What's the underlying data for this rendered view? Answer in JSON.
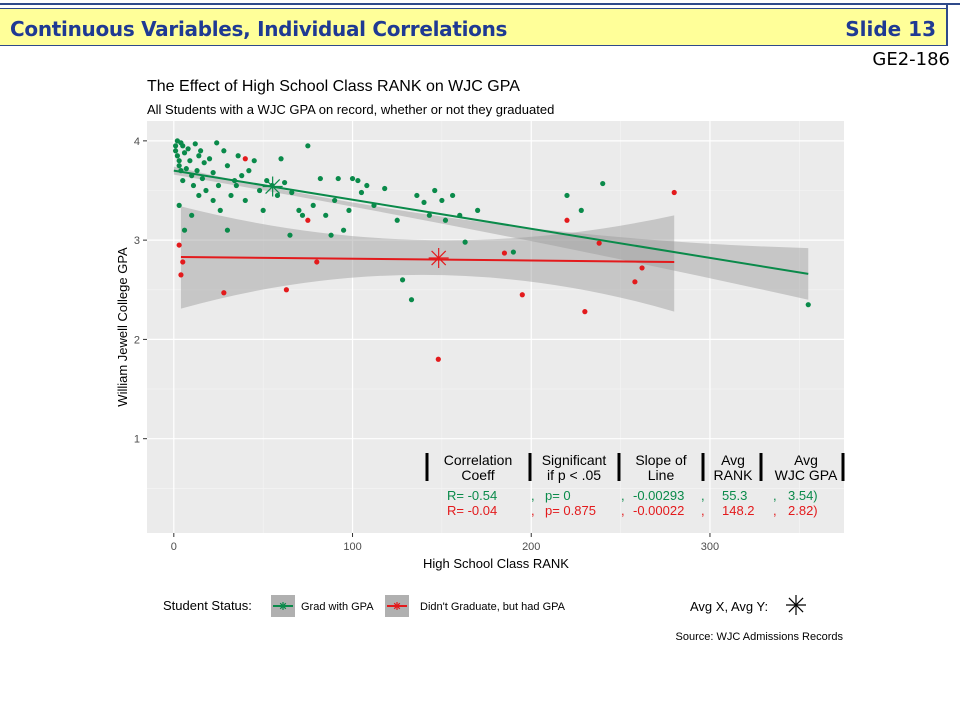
{
  "header": {
    "title": "Continuous Variables, Individual Correlations",
    "slide": "Slide 13",
    "code": "GE2-186"
  },
  "chart_data": {
    "type": "scatter",
    "title": "The Effect of High School Class RANK on WJC GPA",
    "subtitle": "All Students with a WJC GPA on record, whether or not they graduated",
    "xlabel": "High School Class RANK",
    "ylabel": "William Jewell College GPA",
    "xlim": [
      -15,
      375
    ],
    "ylim": [
      0.05,
      4.2
    ],
    "xticks": [
      0,
      100,
      200,
      300
    ],
    "yticks": [
      1,
      2,
      3,
      4
    ],
    "grid": true,
    "series": [
      {
        "name": "Grad with GPA",
        "color": "#0a8a4a",
        "points": [
          [
            1,
            3.95
          ],
          [
            1,
            3.9
          ],
          [
            2,
            4.0
          ],
          [
            2,
            3.85
          ],
          [
            3,
            3.8
          ],
          [
            3,
            3.75
          ],
          [
            4,
            3.7
          ],
          [
            4,
            3.98
          ],
          [
            5,
            3.6
          ],
          [
            5,
            3.95
          ],
          [
            6,
            3.88
          ],
          [
            7,
            3.72
          ],
          [
            8,
            3.92
          ],
          [
            9,
            3.8
          ],
          [
            10,
            3.65
          ],
          [
            11,
            3.55
          ],
          [
            12,
            3.97
          ],
          [
            13,
            3.7
          ],
          [
            14,
            3.85
          ],
          [
            15,
            3.9
          ],
          [
            16,
            3.62
          ],
          [
            17,
            3.78
          ],
          [
            18,
            3.5
          ],
          [
            20,
            3.82
          ],
          [
            22,
            3.68
          ],
          [
            24,
            3.98
          ],
          [
            25,
            3.55
          ],
          [
            26,
            3.3
          ],
          [
            28,
            3.9
          ],
          [
            30,
            3.75
          ],
          [
            32,
            3.45
          ],
          [
            34,
            3.6
          ],
          [
            36,
            3.85
          ],
          [
            38,
            3.65
          ],
          [
            40,
            3.4
          ],
          [
            42,
            3.7
          ],
          [
            45,
            3.8
          ],
          [
            48,
            3.5
          ],
          [
            50,
            3.3
          ],
          [
            52,
            3.6
          ],
          [
            55,
            3.55
          ],
          [
            58,
            3.45
          ],
          [
            60,
            3.82
          ],
          [
            62,
            3.58
          ],
          [
            65,
            3.05
          ],
          [
            66,
            3.48
          ],
          [
            70,
            3.3
          ],
          [
            72,
            3.25
          ],
          [
            75,
            3.95
          ],
          [
            78,
            3.35
          ],
          [
            82,
            3.62
          ],
          [
            85,
            3.25
          ],
          [
            88,
            3.05
          ],
          [
            90,
            3.4
          ],
          [
            92,
            3.62
          ],
          [
            95,
            3.1
          ],
          [
            98,
            3.3
          ],
          [
            100,
            3.62
          ],
          [
            103,
            3.6
          ],
          [
            105,
            3.48
          ],
          [
            108,
            3.55
          ],
          [
            112,
            3.35
          ],
          [
            118,
            3.52
          ],
          [
            125,
            3.2
          ],
          [
            128,
            2.6
          ],
          [
            133,
            2.4
          ],
          [
            136,
            3.45
          ],
          [
            140,
            3.38
          ],
          [
            143,
            3.25
          ],
          [
            146,
            3.5
          ],
          [
            150,
            3.4
          ],
          [
            152,
            3.2
          ],
          [
            156,
            3.45
          ],
          [
            160,
            3.25
          ],
          [
            163,
            2.98
          ],
          [
            170,
            3.3
          ],
          [
            190,
            2.88
          ],
          [
            220,
            3.45
          ],
          [
            228,
            3.3
          ],
          [
            240,
            3.57
          ],
          [
            355,
            2.35
          ],
          [
            3,
            3.35
          ],
          [
            6,
            3.1
          ],
          [
            10,
            3.25
          ],
          [
            14,
            3.45
          ],
          [
            22,
            3.4
          ],
          [
            30,
            3.1
          ],
          [
            35,
            3.55
          ]
        ],
        "avg_x": 55.3,
        "avg_y": 3.54,
        "fit": [
          [
            0,
            3.7
          ],
          [
            355,
            2.66
          ]
        ],
        "band": {
          "x0": 0,
          "x1": 355,
          "lower0": 3.66,
          "upper0": 3.74,
          "lowerMid": 3.07,
          "upperMid": 3.17,
          "lower1": 2.4,
          "upper1": 2.92
        }
      },
      {
        "name": "Didn't Graduate, but had GPA",
        "color": "#e31a1c",
        "points": [
          [
            3,
            2.95
          ],
          [
            4,
            2.65
          ],
          [
            5,
            2.78
          ],
          [
            28,
            2.47
          ],
          [
            40,
            3.82
          ],
          [
            63,
            2.5
          ],
          [
            75,
            3.2
          ],
          [
            80,
            2.78
          ],
          [
            148,
            1.8
          ],
          [
            185,
            2.87
          ],
          [
            195,
            2.45
          ],
          [
            220,
            3.2
          ],
          [
            230,
            2.28
          ],
          [
            238,
            2.97
          ],
          [
            258,
            2.58
          ],
          [
            262,
            2.72
          ],
          [
            280,
            3.48
          ]
        ],
        "avg_x": 148.2,
        "avg_y": 2.82,
        "fit": [
          [
            4,
            2.83
          ],
          [
            280,
            2.78
          ]
        ],
        "band": {
          "x0": 4,
          "x1": 280,
          "lower0": 2.31,
          "upper0": 3.34,
          "lowerMid": 2.65,
          "upperMid": 3.0,
          "lower1": 2.28,
          "upper1": 3.25
        }
      }
    ],
    "annotation_table": {
      "headers": [
        [
          "Correlation",
          "Coeff"
        ],
        [
          "Significant",
          "if p < .05"
        ],
        [
          "Slope of",
          "Line"
        ],
        [
          "Avg",
          "RANK"
        ],
        [
          "Avg",
          "WJC GPA"
        ]
      ],
      "rows": [
        {
          "color": "#0a8a4a",
          "cells": [
            "R= -0.54",
            ",",
            "p= 0",
            ",",
            "-0.00293",
            ",",
            "55.3",
            ",",
            "3.54)"
          ]
        },
        {
          "color": "#e31a1c",
          "cells": [
            "R= -0.04",
            ",",
            "p= 0.875",
            ",",
            "-0.00022",
            ",",
            "148.2",
            ",",
            "2.82)"
          ]
        }
      ]
    },
    "legend": {
      "title": "Student Status:",
      "placement": "bottom",
      "items": [
        "Grad with GPA",
        "Didn't Graduate, but had GPA"
      ],
      "avg_label": "Avg X, Avg Y:"
    },
    "caption": "Source: WJC Admissions Records"
  }
}
